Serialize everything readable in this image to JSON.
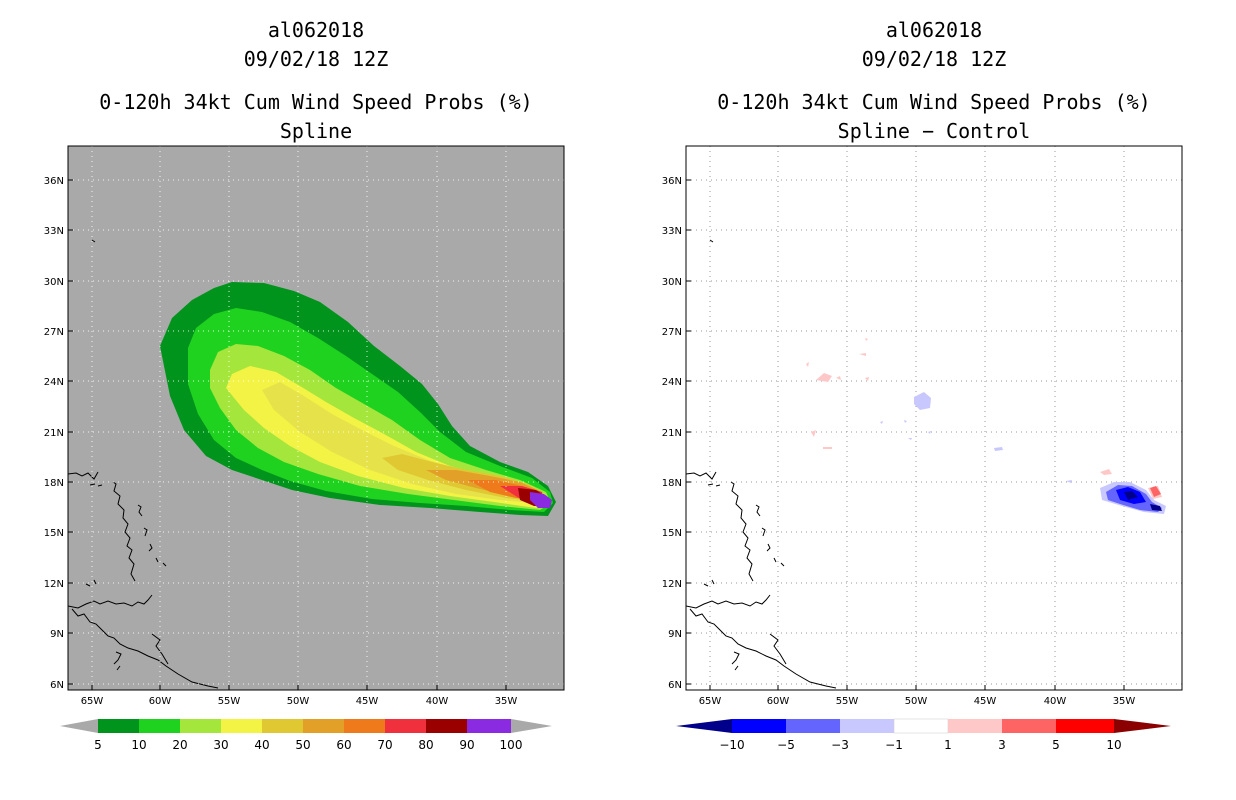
{
  "left": {
    "storm_id": "al062018",
    "datetime": "09/02/18 12Z",
    "product": "0-120h 34kt Cum Wind Speed Probs (%)",
    "method": "Spline",
    "lat_labels": [
      "36N",
      "33N",
      "30N",
      "27N",
      "24N",
      "21N",
      "18N",
      "15N",
      "12N",
      "9N",
      "6N"
    ],
    "lon_labels": [
      "65W",
      "60W",
      "55W",
      "50W",
      "45W",
      "40W",
      "35W"
    ],
    "colorbar": {
      "labels": [
        "5",
        "10",
        "20",
        "30",
        "40",
        "50",
        "60",
        "70",
        "80",
        "90",
        "100"
      ],
      "colors": [
        "#00941c",
        "#1fd21f",
        "#a5e63c",
        "#f3f346",
        "#e0c832",
        "#e2a029",
        "#ef7a1c",
        "#f0303c",
        "#9b0000",
        "#8a2be2"
      ]
    },
    "background": "#a9a9a9"
  },
  "right": {
    "storm_id": "al062018",
    "datetime": "09/02/18 12Z",
    "product": "0-120h 34kt Cum Wind Speed Probs (%)",
    "method": "Spline − Control",
    "lat_labels": [
      "36N",
      "33N",
      "30N",
      "27N",
      "24N",
      "21N",
      "18N",
      "15N",
      "12N",
      "9N",
      "6N"
    ],
    "lon_labels": [
      "65W",
      "60W",
      "55W",
      "50W",
      "45W",
      "40W",
      "35W"
    ],
    "colorbar": {
      "labels": [
        "−10",
        "−5",
        "−3",
        "−1",
        "1",
        "3",
        "5",
        "10"
      ],
      "colors": [
        "#00008b",
        "#0000ff",
        "#6464ff",
        "#c8c8ff",
        "#ffffff",
        "#ffc8c8",
        "#ff6464",
        "#ff0000",
        "#8b0000"
      ]
    },
    "background": "#ffffff"
  }
}
